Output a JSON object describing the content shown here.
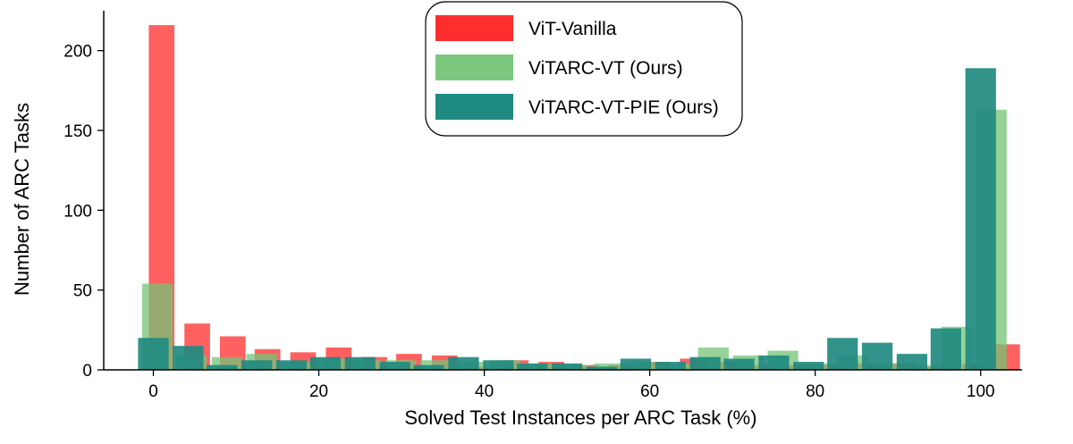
{
  "chart_data": {
    "type": "bar",
    "xlabel": "Solved Test Instances per ARC Task (%)",
    "ylabel": "Number of ARC Tasks",
    "xlim": [
      -6,
      105
    ],
    "ylim": [
      0,
      225
    ],
    "xticks": [
      0,
      20,
      40,
      60,
      80,
      100
    ],
    "yticks": [
      0,
      50,
      100,
      150,
      200
    ],
    "grid": false,
    "legend_position": "top-center",
    "series": [
      {
        "name": "ViT-Vanilla",
        "color": "#ff0000",
        "opacity": 0.62,
        "bars": [
          {
            "x": 1.0,
            "width": 3.1,
            "value": 216
          },
          {
            "x": 5.3,
            "width": 3.1,
            "value": 29
          },
          {
            "x": 9.6,
            "width": 3.1,
            "value": 21
          },
          {
            "x": 13.8,
            "width": 3.1,
            "value": 13
          },
          {
            "x": 18.1,
            "width": 3.1,
            "value": 11
          },
          {
            "x": 22.4,
            "width": 3.1,
            "value": 14
          },
          {
            "x": 26.7,
            "width": 3.1,
            "value": 8
          },
          {
            "x": 30.9,
            "width": 3.1,
            "value": 10
          },
          {
            "x": 35.2,
            "width": 3.1,
            "value": 9
          },
          {
            "x": 39.5,
            "width": 3.1,
            "value": 2
          },
          {
            "x": 43.8,
            "width": 3.1,
            "value": 6
          },
          {
            "x": 48.1,
            "width": 3.1,
            "value": 5
          },
          {
            "x": 52.3,
            "width": 3.1,
            "value": 3
          },
          {
            "x": 56.6,
            "width": 3.1,
            "value": 3
          },
          {
            "x": 60.9,
            "width": 3.1,
            "value": 5
          },
          {
            "x": 65.2,
            "width": 3.1,
            "value": 7
          },
          {
            "x": 69.4,
            "width": 3.1,
            "value": 5
          },
          {
            "x": 73.7,
            "width": 3.1,
            "value": 3
          },
          {
            "x": 78.0,
            "width": 3.1,
            "value": 3
          },
          {
            "x": 82.3,
            "width": 3.1,
            "value": 3
          },
          {
            "x": 86.5,
            "width": 3.1,
            "value": 4
          },
          {
            "x": 90.8,
            "width": 3.1,
            "value": 4
          },
          {
            "x": 95.1,
            "width": 3.1,
            "value": 2
          },
          {
            "x": 99.3,
            "width": 3.1,
            "value": 4
          },
          {
            "x": 103.2,
            "width": 3.1,
            "value": 16
          }
        ]
      },
      {
        "name": "ViTARC-VT (Ours)",
        "color": "#74c476",
        "opacity": 0.75,
        "bars": [
          {
            "x": 0.5,
            "width": 3.7,
            "value": 54
          },
          {
            "x": 4.6,
            "width": 3.7,
            "value": 9
          },
          {
            "x": 8.9,
            "width": 3.7,
            "value": 8
          },
          {
            "x": 13.1,
            "width": 3.7,
            "value": 10
          },
          {
            "x": 17.3,
            "width": 3.7,
            "value": 5
          },
          {
            "x": 21.5,
            "width": 3.7,
            "value": 7
          },
          {
            "x": 25.7,
            "width": 3.7,
            "value": 6
          },
          {
            "x": 29.9,
            "width": 3.7,
            "value": 6
          },
          {
            "x": 34.1,
            "width": 3.7,
            "value": 6
          },
          {
            "x": 38.3,
            "width": 3.7,
            "value": 5
          },
          {
            "x": 42.5,
            "width": 3.7,
            "value": 6
          },
          {
            "x": 46.7,
            "width": 3.7,
            "value": 4
          },
          {
            "x": 50.9,
            "width": 3.7,
            "value": 3
          },
          {
            "x": 55.1,
            "width": 3.7,
            "value": 4
          },
          {
            "x": 59.3,
            "width": 3.7,
            "value": 5
          },
          {
            "x": 63.5,
            "width": 3.7,
            "value": 4
          },
          {
            "x": 67.7,
            "width": 3.7,
            "value": 14
          },
          {
            "x": 71.9,
            "width": 3.7,
            "value": 9
          },
          {
            "x": 76.1,
            "width": 3.7,
            "value": 12
          },
          {
            "x": 80.3,
            "width": 3.7,
            "value": 4
          },
          {
            "x": 84.5,
            "width": 3.7,
            "value": 9
          },
          {
            "x": 88.7,
            "width": 3.7,
            "value": 4
          },
          {
            "x": 92.9,
            "width": 3.7,
            "value": 3
          },
          {
            "x": 97.1,
            "width": 3.7,
            "value": 27
          },
          {
            "x": 101.3,
            "width": 3.7,
            "value": 163
          }
        ]
      },
      {
        "name": "ViTARC-VT-PIE (Ours)",
        "color": "#1f8a80",
        "opacity": 0.92,
        "bars": [
          {
            "x": 0.0,
            "width": 3.7,
            "value": 20
          },
          {
            "x": 4.2,
            "width": 3.7,
            "value": 15
          },
          {
            "x": 8.3,
            "width": 3.7,
            "value": 3
          },
          {
            "x": 12.5,
            "width": 3.7,
            "value": 6
          },
          {
            "x": 16.7,
            "width": 3.7,
            "value": 6
          },
          {
            "x": 20.8,
            "width": 3.7,
            "value": 8
          },
          {
            "x": 25.0,
            "width": 3.7,
            "value": 8
          },
          {
            "x": 29.2,
            "width": 3.7,
            "value": 5
          },
          {
            "x": 33.3,
            "width": 3.7,
            "value": 3
          },
          {
            "x": 37.5,
            "width": 3.7,
            "value": 8
          },
          {
            "x": 41.7,
            "width": 3.7,
            "value": 6
          },
          {
            "x": 45.8,
            "width": 3.7,
            "value": 4
          },
          {
            "x": 50.0,
            "width": 3.7,
            "value": 4
          },
          {
            "x": 54.2,
            "width": 3.7,
            "value": 2
          },
          {
            "x": 58.3,
            "width": 3.7,
            "value": 7
          },
          {
            "x": 62.5,
            "width": 3.7,
            "value": 5
          },
          {
            "x": 66.7,
            "width": 3.7,
            "value": 8
          },
          {
            "x": 70.8,
            "width": 3.7,
            "value": 7
          },
          {
            "x": 75.0,
            "width": 3.7,
            "value": 9
          },
          {
            "x": 79.2,
            "width": 3.7,
            "value": 5
          },
          {
            "x": 83.3,
            "width": 3.7,
            "value": 20
          },
          {
            "x": 87.5,
            "width": 3.7,
            "value": 17
          },
          {
            "x": 91.7,
            "width": 3.7,
            "value": 10
          },
          {
            "x": 95.8,
            "width": 3.7,
            "value": 26
          },
          {
            "x": 100.0,
            "width": 3.7,
            "value": 189
          }
        ]
      }
    ]
  }
}
